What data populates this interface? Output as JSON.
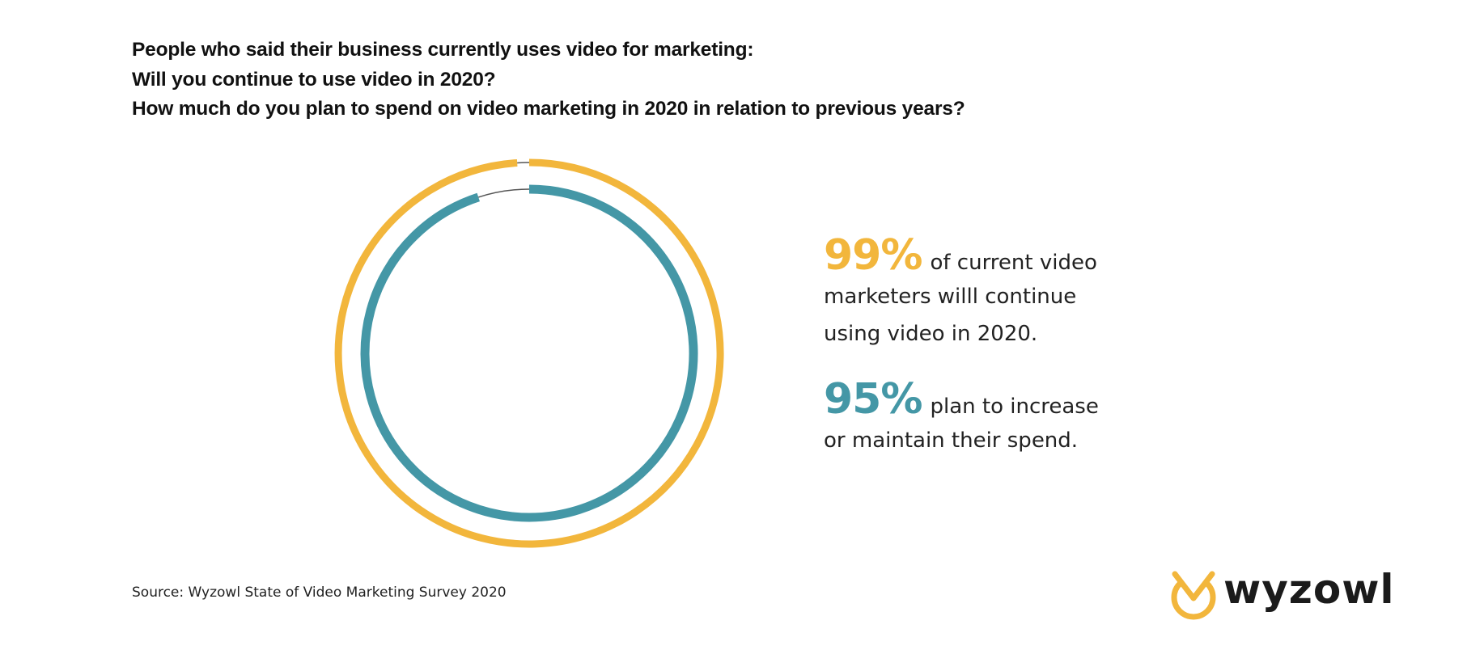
{
  "header": {
    "lines": [
      "People who said their business currently uses video for marketing:",
      "Will you continue to use video in 2020?",
      "How much do you plan to spend on video marketing in 2020 in relation to previous years?"
    ]
  },
  "stats": [
    {
      "value": "99%",
      "color": "#F2B63C",
      "lines": [
        "of current video",
        "marketers willl continue",
        "using video in 2020."
      ]
    },
    {
      "value": "95%",
      "color": "#4497A6",
      "lines": [
        "plan to increase",
        "or maintain their spend."
      ]
    }
  ],
  "footer": {
    "source": "Source: Wyzowl State of Video Marketing Survey 2020"
  },
  "logo": {
    "text": "wyzowl",
    "mark_icon": "owl-icon",
    "mark_color": "#F2B63C"
  },
  "colors": {
    "yellow": "#F2B63C",
    "teal": "#4497A6",
    "remainder_line": "#555555"
  },
  "chart_data": {
    "type": "pie",
    "subtype": "concentric-ring",
    "title": "People who said their business currently uses video for marketing",
    "series": [
      {
        "name": "Will continue to use video in 2020",
        "ring": "outer",
        "value": 99,
        "remainder": 1,
        "color": "#F2B63C"
      },
      {
        "name": "Plan to increase or maintain video spend",
        "ring": "inner",
        "value": 95,
        "remainder": 5,
        "color": "#4497A6"
      }
    ],
    "unit": "%",
    "start_angle": "12 o'clock",
    "direction": "clockwise",
    "annotations": [
      "99% of current video marketers willl continue using video in 2020.",
      "95% plan to increase or maintain their spend."
    ],
    "source": "Source: Wyzowl State of Video Marketing Survey 2020"
  }
}
